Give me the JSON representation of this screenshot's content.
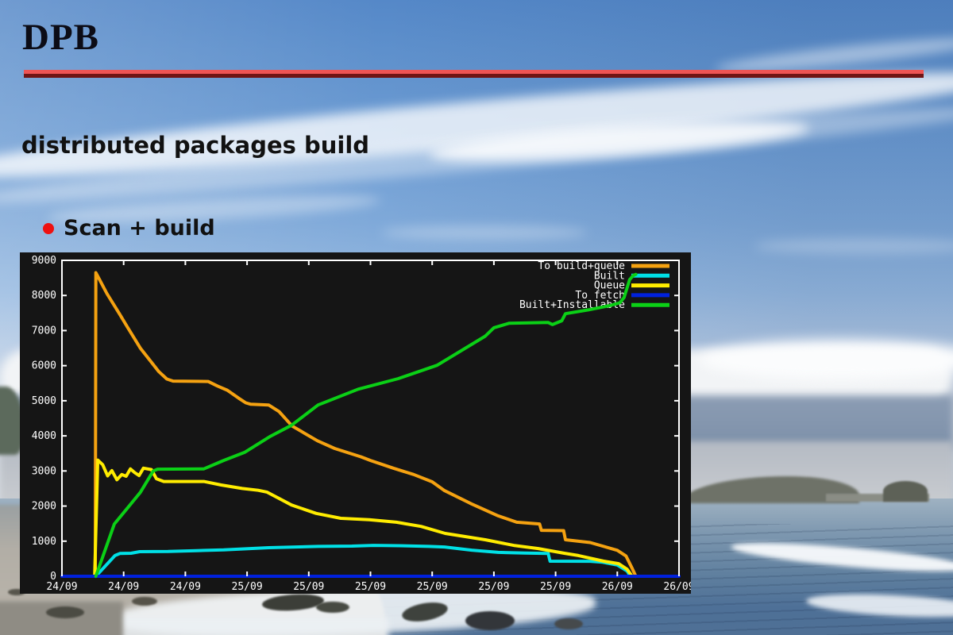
{
  "slide": {
    "title": "DPB",
    "subtitle": "distributed packages build",
    "bullet": "Scan + build"
  },
  "palette": {
    "rule_top": "#ee5454",
    "rule_bottom": "#701414",
    "bullet": "#ee1111"
  },
  "chart_data": {
    "type": "line",
    "title": "",
    "background": "#151515",
    "frame_color": "#ffffff",
    "text_color": "#ffffff",
    "legend_position": "top-right",
    "x_axis": {
      "tick_labels": [
        "24/09",
        "24/09",
        "24/09",
        "25/09",
        "25/09",
        "25/09",
        "25/09",
        "25/09",
        "25/09",
        "26/09",
        "26/09"
      ]
    },
    "y_axis": {
      "min": 0,
      "max": 9000,
      "step": 1000
    },
    "series": [
      {
        "name": "To build+queue",
        "color": "#f5a211",
        "points": [
          [
            0.54,
            0
          ],
          [
            0.55,
            8650
          ],
          [
            0.73,
            8050
          ],
          [
            0.93,
            7480
          ],
          [
            1.06,
            7100
          ],
          [
            1.27,
            6500
          ],
          [
            1.44,
            6120
          ],
          [
            1.57,
            5830
          ],
          [
            1.7,
            5620
          ],
          [
            1.8,
            5560
          ],
          [
            2.37,
            5550
          ],
          [
            2.52,
            5420
          ],
          [
            2.68,
            5300
          ],
          [
            2.86,
            5080
          ],
          [
            2.98,
            4940
          ],
          [
            3.06,
            4900
          ],
          [
            3.35,
            4880
          ],
          [
            3.52,
            4690
          ],
          [
            3.73,
            4280
          ],
          [
            4.14,
            3860
          ],
          [
            4.42,
            3640
          ],
          [
            4.85,
            3400
          ],
          [
            5.0,
            3300
          ],
          [
            5.37,
            3080
          ],
          [
            5.7,
            2900
          ],
          [
            6.0,
            2690
          ],
          [
            6.2,
            2440
          ],
          [
            6.64,
            2060
          ],
          [
            7.07,
            1720
          ],
          [
            7.37,
            1540
          ],
          [
            7.74,
            1490
          ],
          [
            7.77,
            1310
          ],
          [
            8.13,
            1300
          ],
          [
            8.16,
            1040
          ],
          [
            8.56,
            960
          ],
          [
            9.0,
            740
          ],
          [
            9.14,
            580
          ],
          [
            9.24,
            230
          ],
          [
            9.3,
            0
          ]
        ]
      },
      {
        "name": "Built",
        "color": "#00e0e6",
        "points": [
          [
            0.55,
            0
          ],
          [
            0.86,
            590
          ],
          [
            0.94,
            650
          ],
          [
            1.12,
            655
          ],
          [
            1.26,
            700
          ],
          [
            1.72,
            705
          ],
          [
            2.18,
            730
          ],
          [
            2.62,
            750
          ],
          [
            3.35,
            815
          ],
          [
            4.15,
            850
          ],
          [
            4.7,
            860
          ],
          [
            5.05,
            880
          ],
          [
            5.45,
            870
          ],
          [
            5.95,
            850
          ],
          [
            6.2,
            835
          ],
          [
            6.64,
            745
          ],
          [
            7.07,
            680
          ],
          [
            7.5,
            660
          ],
          [
            7.88,
            648
          ],
          [
            7.91,
            430
          ],
          [
            8.56,
            428
          ],
          [
            8.76,
            400
          ],
          [
            9.0,
            320
          ],
          [
            9.16,
            150
          ],
          [
            9.21,
            0
          ]
        ]
      },
      {
        "name": "Queue",
        "color": "#ffec00",
        "points": [
          [
            0.53,
            0
          ],
          [
            0.58,
            3310
          ],
          [
            0.66,
            3180
          ],
          [
            0.74,
            2860
          ],
          [
            0.81,
            3010
          ],
          [
            0.89,
            2750
          ],
          [
            0.97,
            2900
          ],
          [
            1.04,
            2850
          ],
          [
            1.11,
            3060
          ],
          [
            1.18,
            2950
          ],
          [
            1.25,
            2870
          ],
          [
            1.32,
            3080
          ],
          [
            1.45,
            3040
          ],
          [
            1.53,
            2780
          ],
          [
            1.65,
            2700
          ],
          [
            2.3,
            2700
          ],
          [
            2.58,
            2600
          ],
          [
            2.92,
            2500
          ],
          [
            3.18,
            2450
          ],
          [
            3.32,
            2400
          ],
          [
            3.72,
            2030
          ],
          [
            4.12,
            1790
          ],
          [
            4.52,
            1650
          ],
          [
            4.98,
            1610
          ],
          [
            5.42,
            1540
          ],
          [
            5.82,
            1420
          ],
          [
            6.21,
            1220
          ],
          [
            6.86,
            1040
          ],
          [
            7.32,
            880
          ],
          [
            7.72,
            790
          ],
          [
            8.14,
            655
          ],
          [
            8.37,
            590
          ],
          [
            8.78,
            430
          ],
          [
            9.02,
            360
          ],
          [
            9.16,
            200
          ],
          [
            9.24,
            0
          ]
        ]
      },
      {
        "name": "To fetch",
        "color": "#0021dd",
        "points": [
          [
            0,
            0
          ],
          [
            10,
            0
          ]
        ]
      },
      {
        "name": "Built+Installable",
        "color": "#0bd016",
        "points": [
          [
            0.55,
            0
          ],
          [
            0.85,
            1490
          ],
          [
            1.06,
            1940
          ],
          [
            1.27,
            2390
          ],
          [
            1.48,
            3000
          ],
          [
            1.55,
            3050
          ],
          [
            2.3,
            3060
          ],
          [
            2.62,
            3300
          ],
          [
            2.96,
            3530
          ],
          [
            3.38,
            3990
          ],
          [
            3.72,
            4300
          ],
          [
            4.15,
            4880
          ],
          [
            4.8,
            5330
          ],
          [
            5.45,
            5630
          ],
          [
            6.08,
            6010
          ],
          [
            6.86,
            6840
          ],
          [
            7.0,
            7080
          ],
          [
            7.25,
            7210
          ],
          [
            7.88,
            7230
          ],
          [
            7.95,
            7170
          ],
          [
            8.1,
            7280
          ],
          [
            8.16,
            7480
          ],
          [
            8.53,
            7590
          ],
          [
            8.88,
            7710
          ],
          [
            9.04,
            7790
          ],
          [
            9.11,
            7940
          ],
          [
            9.2,
            8450
          ],
          [
            9.26,
            8570
          ],
          [
            9.3,
            8600
          ]
        ]
      }
    ]
  }
}
